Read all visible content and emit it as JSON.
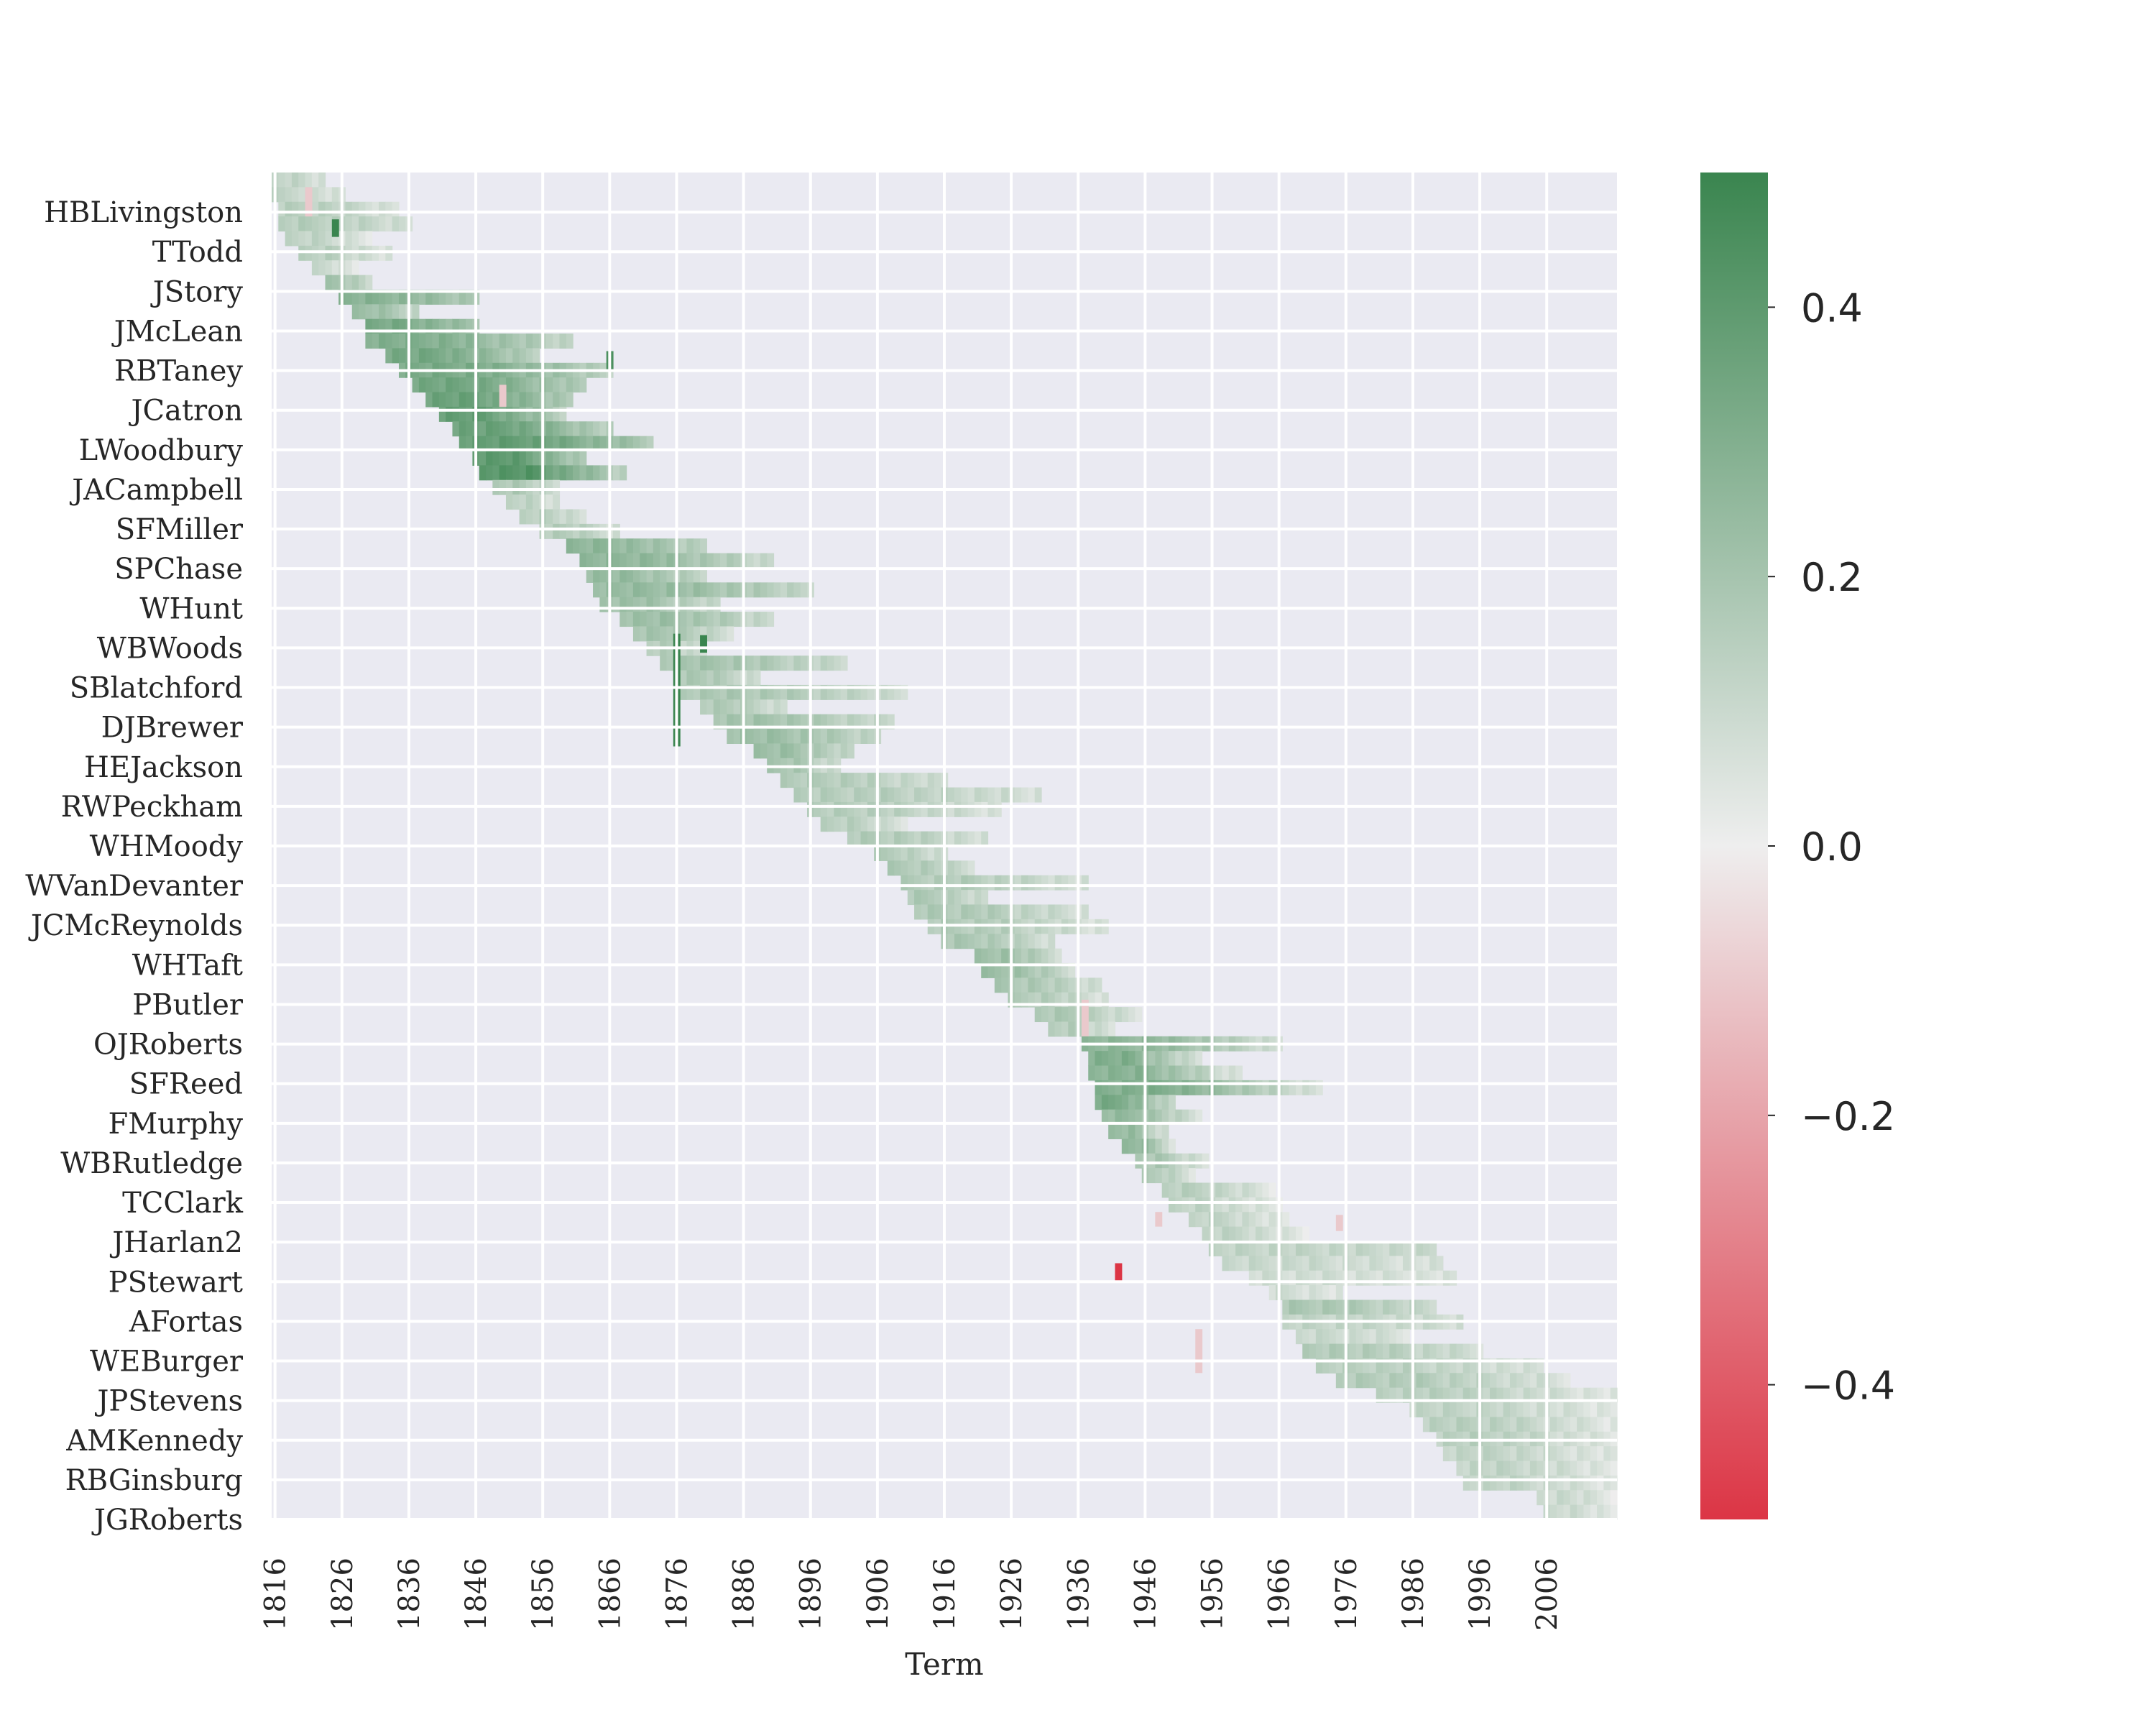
{
  "chart_data": {
    "type": "heatmap",
    "title": "",
    "xlabel": "Term",
    "ylabel": "",
    "grid": true,
    "x_range": [
      1816,
      2016
    ],
    "x_ticks": [
      1816,
      1826,
      1836,
      1846,
      1856,
      1866,
      1876,
      1886,
      1896,
      1906,
      1916,
      1926,
      1936,
      1946,
      1956,
      1966,
      1976,
      1986,
      1996,
      2006
    ],
    "y_ticks": [
      "HBLivingston",
      "TTodd",
      "JStory",
      "JMcLean",
      "RBTaney",
      "JCatron",
      "LWoodbury",
      "JACampbell",
      "SFMiller",
      "SPChase",
      "WHunt",
      "WBWoods",
      "SBlatchford",
      "DJBrewer",
      "HEJackson",
      "RWPeckham",
      "WHMoody",
      "WVanDevanter",
      "JCMcReynolds",
      "WHTaft",
      "PButler",
      "OJRoberts",
      "SFReed",
      "FMurphy",
      "WBRutledge",
      "TCClark",
      "JHarlan2",
      "PStewart",
      "AFortas",
      "WEBurger",
      "JPStevens",
      "AMKennedy",
      "RBGinsburg",
      "JGRoberts"
    ],
    "colorbar": {
      "range": [
        -0.5,
        0.5
      ],
      "ticks": [
        0.4,
        0.2,
        0.0,
        -0.2,
        -0.4
      ],
      "tick_labels": [
        "0.4",
        "0.2",
        "0.0",
        "−0.2",
        "−0.4"
      ],
      "colors": {
        "negative": "#dc3545",
        "neutral": "#eeeeee",
        "positive": "#3a854f"
      }
    },
    "row_segments": [
      {
        "s": 1816,
        "e": 1823,
        "v": 0.13,
        "v2": 0.06
      },
      {
        "s": 1816,
        "e": 1826,
        "v": 0.12,
        "v2": 0.05
      },
      {
        "s": 1817,
        "e": 1834,
        "v": 0.14,
        "v2": 0.06
      },
      {
        "s": 1817,
        "e": 1836,
        "v": 0.15,
        "v2": 0.08
      },
      {
        "s": 1818,
        "e": 1830,
        "v": 0.12,
        "v2": 0.04
      },
      {
        "s": 1820,
        "e": 1833,
        "v": 0.14,
        "v2": 0.05
      },
      {
        "s": 1822,
        "e": 1828,
        "v": 0.1,
        "v2": 0.02
      },
      {
        "s": 1824,
        "e": 1830,
        "v": 0.2,
        "v2": 0.09
      },
      {
        "s": 1826,
        "e": 1846,
        "v": 0.28,
        "v2": 0.18
      },
      {
        "s": 1828,
        "e": 1837,
        "v": 0.22,
        "v2": 0.12
      },
      {
        "s": 1830,
        "e": 1846,
        "v": 0.32,
        "v2": 0.2
      },
      {
        "s": 1830,
        "e": 1860,
        "v": 0.3,
        "v2": 0.12
      },
      {
        "s": 1833,
        "e": 1855,
        "v": 0.33,
        "v2": 0.15
      },
      {
        "s": 1835,
        "e": 1866,
        "v": 0.32,
        "v2": 0.14
      },
      {
        "s": 1837,
        "e": 1862,
        "v": 0.34,
        "v2": 0.16
      },
      {
        "s": 1839,
        "e": 1860,
        "v": 0.36,
        "v2": 0.17
      },
      {
        "s": 1841,
        "e": 1859,
        "v": 0.38,
        "v2": 0.15
      },
      {
        "s": 1843,
        "e": 1866,
        "v": 0.36,
        "v2": 0.14
      },
      {
        "s": 1844,
        "e": 1872,
        "v": 0.38,
        "v2": 0.18
      },
      {
        "s": 1846,
        "e": 1862,
        "v": 0.4,
        "v2": 0.16
      },
      {
        "s": 1847,
        "e": 1868,
        "v": 0.42,
        "v2": 0.14
      },
      {
        "s": 1849,
        "e": 1858,
        "v": 0.18,
        "v2": 0.08
      },
      {
        "s": 1851,
        "e": 1858,
        "v": 0.14,
        "v2": 0.06
      },
      {
        "s": 1853,
        "e": 1862,
        "v": 0.15,
        "v2": 0.06
      },
      {
        "s": 1856,
        "e": 1867,
        "v": 0.16,
        "v2": 0.08
      },
      {
        "s": 1860,
        "e": 1880,
        "v": 0.26,
        "v2": 0.14
      },
      {
        "s": 1862,
        "e": 1890,
        "v": 0.26,
        "v2": 0.1
      },
      {
        "s": 1863,
        "e": 1880,
        "v": 0.24,
        "v2": 0.12
      },
      {
        "s": 1864,
        "e": 1896,
        "v": 0.24,
        "v2": 0.12
      },
      {
        "s": 1865,
        "e": 1882,
        "v": 0.22,
        "v2": 0.1
      },
      {
        "s": 1868,
        "e": 1890,
        "v": 0.22,
        "v2": 0.1
      },
      {
        "s": 1870,
        "e": 1884,
        "v": 0.2,
        "v2": 0.08
      },
      {
        "s": 1872,
        "e": 1880,
        "v": 0.16,
        "v2": 0.06
      },
      {
        "s": 1874,
        "e": 1901,
        "v": 0.2,
        "v2": 0.1
      },
      {
        "s": 1876,
        "e": 1888,
        "v": 0.18,
        "v2": 0.08
      },
      {
        "s": 1877,
        "e": 1910,
        "v": 0.18,
        "v2": 0.09
      },
      {
        "s": 1880,
        "e": 1892,
        "v": 0.17,
        "v2": 0.08
      },
      {
        "s": 1882,
        "e": 1908,
        "v": 0.2,
        "v2": 0.1
      },
      {
        "s": 1884,
        "e": 1906,
        "v": 0.22,
        "v2": 0.12
      },
      {
        "s": 1888,
        "e": 1902,
        "v": 0.22,
        "v2": 0.11
      },
      {
        "s": 1890,
        "e": 1900,
        "v": 0.19,
        "v2": 0.09
      },
      {
        "s": 1892,
        "e": 1916,
        "v": 0.16,
        "v2": 0.08
      },
      {
        "s": 1894,
        "e": 1930,
        "v": 0.15,
        "v2": 0.07
      },
      {
        "s": 1896,
        "e": 1924,
        "v": 0.15,
        "v2": 0.06
      },
      {
        "s": 1898,
        "e": 1910,
        "v": 0.14,
        "v2": 0.06
      },
      {
        "s": 1902,
        "e": 1922,
        "v": 0.16,
        "v2": 0.07
      },
      {
        "s": 1906,
        "e": 1916,
        "v": 0.16,
        "v2": 0.07
      },
      {
        "s": 1908,
        "e": 1920,
        "v": 0.17,
        "v2": 0.08
      },
      {
        "s": 1910,
        "e": 1937,
        "v": 0.16,
        "v2": 0.07
      },
      {
        "s": 1911,
        "e": 1922,
        "v": 0.17,
        "v2": 0.08
      },
      {
        "s": 1912,
        "e": 1937,
        "v": 0.17,
        "v2": 0.07
      },
      {
        "s": 1914,
        "e": 1940,
        "v": 0.16,
        "v2": 0.06
      },
      {
        "s": 1916,
        "e": 1932,
        "v": 0.18,
        "v2": 0.08
      },
      {
        "s": 1921,
        "e": 1933,
        "v": 0.22,
        "v2": 0.1
      },
      {
        "s": 1922,
        "e": 1935,
        "v": 0.22,
        "v2": 0.1
      },
      {
        "s": 1924,
        "e": 1939,
        "v": 0.18,
        "v2": 0.08
      },
      {
        "s": 1926,
        "e": 1940,
        "v": 0.16,
        "v2": 0.06
      },
      {
        "s": 1930,
        "e": 1945,
        "v": 0.18,
        "v2": 0.06
      },
      {
        "s": 1932,
        "e": 1941,
        "v": 0.16,
        "v2": 0.05
      },
      {
        "s": 1937,
        "e": 1966,
        "v": 0.26,
        "v2": 0.08
      },
      {
        "s": 1938,
        "e": 1954,
        "v": 0.3,
        "v2": 0.06
      },
      {
        "s": 1938,
        "e": 1960,
        "v": 0.28,
        "v2": 0.05
      },
      {
        "s": 1939,
        "e": 1972,
        "v": 0.3,
        "v2": 0.06
      },
      {
        "s": 1939,
        "e": 1950,
        "v": 0.32,
        "v2": 0.1
      },
      {
        "s": 1940,
        "e": 1954,
        "v": 0.24,
        "v2": 0.06
      },
      {
        "s": 1941,
        "e": 1949,
        "v": 0.24,
        "v2": 0.08
      },
      {
        "s": 1943,
        "e": 1950,
        "v": 0.26,
        "v2": 0.08
      },
      {
        "s": 1945,
        "e": 1955,
        "v": 0.18,
        "v2": 0.06
      },
      {
        "s": 1946,
        "e": 1953,
        "v": 0.16,
        "v2": 0.05
      },
      {
        "s": 1949,
        "e": 1965,
        "v": 0.14,
        "v2": 0.04
      },
      {
        "s": 1950,
        "e": 1966,
        "v": 0.12,
        "v2": 0.03
      },
      {
        "s": 1953,
        "e": 1967,
        "v": 0.12,
        "v2": 0.03
      },
      {
        "s": 1955,
        "e": 1970,
        "v": 0.12,
        "v2": 0.02
      },
      {
        "s": 1956,
        "e": 1989,
        "v": 0.12,
        "v2": 0.1
      },
      {
        "s": 1958,
        "e": 1990,
        "v": 0.1,
        "v2": 0.06
      },
      {
        "s": 1962,
        "e": 1992,
        "v": 0.08,
        "v2": 0.05
      },
      {
        "s": 1965,
        "e": 1975,
        "v": 0.08,
        "v2": 0.04
      },
      {
        "s": 1967,
        "e": 1989,
        "v": 0.18,
        "v2": 0.1
      },
      {
        "s": 1967,
        "e": 1993,
        "v": 0.12,
        "v2": 0.08
      },
      {
        "s": 1969,
        "e": 1985,
        "v": 0.1,
        "v2": 0.06
      },
      {
        "s": 1970,
        "e": 1996,
        "v": 0.16,
        "v2": 0.08
      },
      {
        "s": 1972,
        "e": 2005,
        "v": 0.14,
        "v2": 0.06
      },
      {
        "s": 1975,
        "e": 2009,
        "v": 0.16,
        "v2": 0.06
      },
      {
        "s": 1981,
        "e": 2016,
        "v": 0.14,
        "v2": 0.04
      },
      {
        "s": 1986,
        "e": 2016,
        "v": 0.12,
        "v2": 0.04
      },
      {
        "s": 1988,
        "e": 2016,
        "v": 0.14,
        "v2": 0.04
      },
      {
        "s": 1990,
        "e": 2016,
        "v": 0.14,
        "v2": 0.04
      },
      {
        "s": 1991,
        "e": 2016,
        "v": 0.12,
        "v2": 0.04
      },
      {
        "s": 1993,
        "e": 2016,
        "v": 0.12,
        "v2": 0.04
      },
      {
        "s": 1994,
        "e": 2016,
        "v": 0.12,
        "v2": 0.04
      },
      {
        "s": 2005,
        "e": 2016,
        "v": 0.1,
        "v2": 0.03
      },
      {
        "s": 2006,
        "e": 2016,
        "v": 0.1,
        "v2": 0.02
      }
    ],
    "highlight_cells": [
      {
        "x": 1876,
        "y0": 31.5,
        "y1": 39.2,
        "v": 0.5
      },
      {
        "x": 1825,
        "y0": 3.2,
        "y1": 4.4,
        "v": 0.5
      },
      {
        "x": 1866,
        "y0": 12.2,
        "y1": 13.5,
        "v": 0.45
      },
      {
        "x": 1880,
        "y0": 31.6,
        "y1": 32.8,
        "v": 0.5
      },
      {
        "x": 1942,
        "y0": 74.5,
        "y1": 75.8,
        "v": -0.5
      },
      {
        "x": 1975,
        "y0": 71.2,
        "y1": 72.3,
        "v": -0.1
      },
      {
        "x": 1850,
        "y0": 14.5,
        "y1": 16.0,
        "v": -0.1
      },
      {
        "x": 1821,
        "y0": 1.0,
        "y1": 3.0,
        "v": -0.1
      },
      {
        "x": 1937,
        "y0": 56.5,
        "y1": 59.0,
        "v": -0.1
      },
      {
        "x": 1954,
        "y0": 79.0,
        "y1": 82.0,
        "v": -0.1
      },
      {
        "x": 1948,
        "y0": 71.0,
        "y1": 72.0,
        "v": -0.1
      }
    ]
  }
}
